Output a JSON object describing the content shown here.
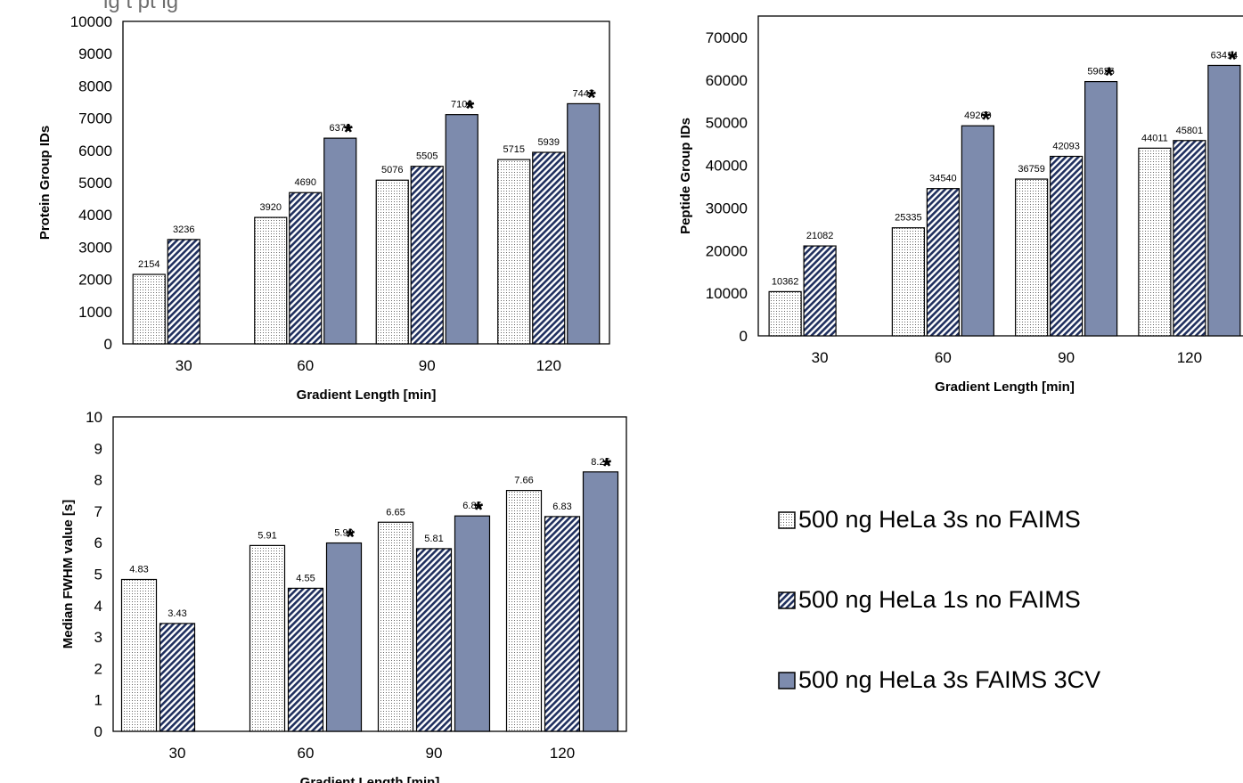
{
  "header_partial_text": "ig      t pt      ig",
  "colors": {
    "fill_3s_no_faims": "#ffffff",
    "dot_3s_no_faims": "#666666",
    "hatch_1s": "#1f2f5e",
    "fill_faims": "#7d8bad",
    "bar_stroke": "#000000",
    "plot_border": "#000000"
  },
  "legend": {
    "items": [
      {
        "label": "500 ng HeLa 3s no FAIMS",
        "pattern": "dots"
      },
      {
        "label": "500 ng HeLa 1s no FAIMS",
        "pattern": "hatch"
      },
      {
        "label": "500 ng HeLa 3s FAIMS 3CV",
        "pattern": "solid"
      }
    ]
  },
  "chart_data": [
    {
      "id": "protein",
      "type": "bar",
      "categories": [
        "30",
        "60",
        "90",
        "120"
      ],
      "series": [
        {
          "name": "500 ng HeLa 3s no FAIMS",
          "pattern": "dots",
          "values": [
            2154,
            3920,
            5076,
            5715
          ]
        },
        {
          "name": "500 ng HeLa 1s no FAIMS",
          "pattern": "hatch",
          "values": [
            3236,
            4690,
            5505,
            5939
          ]
        },
        {
          "name": "500 ng HeLa 3s FAIMS 3CV",
          "pattern": "solid",
          "values": [
            null,
            6378,
            7109,
            7447
          ]
        }
      ],
      "data_labels": [
        [
          "2154",
          "3920",
          "5076",
          "5715"
        ],
        [
          "3236",
          "4690",
          "5505",
          "5939"
        ],
        [
          null,
          "6378",
          "7109",
          "7447"
        ]
      ],
      "significance_marks": [
        [
          false,
          false,
          false,
          false
        ],
        [
          false,
          false,
          false,
          false
        ],
        [
          false,
          true,
          true,
          true
        ]
      ],
      "significance_symbol": "*",
      "ylim": [
        0,
        10000
      ],
      "yticks": [
        "0",
        "1000",
        "2000",
        "3000",
        "4000",
        "5000",
        "6000",
        "7000",
        "8000",
        "9000",
        "10000"
      ],
      "xlabel": "Gradient Length [min]",
      "ylabel": "Protein Group IDs",
      "grid": false
    },
    {
      "id": "peptide",
      "type": "bar",
      "categories": [
        "30",
        "60",
        "90",
        "120"
      ],
      "series": [
        {
          "name": "500 ng HeLa 3s no FAIMS",
          "pattern": "dots",
          "values": [
            10362,
            25335,
            36759,
            44011
          ]
        },
        {
          "name": "500 ng HeLa 1s no FAIMS",
          "pattern": "hatch",
          "values": [
            21082,
            34540,
            42093,
            45801
          ]
        },
        {
          "name": "500 ng HeLa 3s FAIMS 3CV",
          "pattern": "solid",
          "values": [
            null,
            49260,
            59626,
            63414
          ]
        }
      ],
      "data_labels": [
        [
          "10362",
          "25335",
          "36759",
          "44011"
        ],
        [
          "21082",
          "34540",
          "42093",
          "45801"
        ],
        [
          null,
          "49260",
          "59626",
          "63414"
        ]
      ],
      "significance_marks": [
        [
          false,
          false,
          false,
          false
        ],
        [
          false,
          false,
          false,
          false
        ],
        [
          false,
          true,
          true,
          true
        ]
      ],
      "significance_symbol": "*",
      "ylim": [
        0,
        75000
      ],
      "yticks": [
        "0",
        "10000",
        "20000",
        "30000",
        "40000",
        "50000",
        "60000",
        "70000"
      ],
      "xlabel": "Gradient Length [min]",
      "ylabel": "Peptide Group IDs",
      "grid": false
    },
    {
      "id": "fwhm",
      "type": "bar",
      "categories": [
        "30",
        "60",
        "90",
        "120"
      ],
      "series": [
        {
          "name": "500 ng HeLa 3s no FAIMS",
          "pattern": "dots",
          "values": [
            4.83,
            5.91,
            6.65,
            7.66
          ]
        },
        {
          "name": "500 ng HeLa 1s no FAIMS",
          "pattern": "hatch",
          "values": [
            3.43,
            4.55,
            5.81,
            6.83
          ]
        },
        {
          "name": "500 ng HeLa 3s FAIMS 3CV",
          "pattern": "solid",
          "values": [
            null,
            5.99,
            6.85,
            8.25
          ]
        }
      ],
      "data_labels": [
        [
          "4.83",
          "5.91",
          "6.65",
          "7.66"
        ],
        [
          "3.43",
          "4.55",
          "5.81",
          "6.83"
        ],
        [
          null,
          "5.99",
          "6.85",
          "8.25"
        ]
      ],
      "significance_marks": [
        [
          false,
          false,
          false,
          false
        ],
        [
          false,
          false,
          false,
          false
        ],
        [
          false,
          true,
          true,
          true
        ]
      ],
      "significance_symbol": "*",
      "ylim": [
        0,
        10
      ],
      "yticks": [
        "0",
        "1",
        "2",
        "3",
        "4",
        "5",
        "6",
        "7",
        "8",
        "9",
        "10"
      ],
      "xlabel": "Gradient Length [min]",
      "ylabel": "Median FWHM value [s]",
      "grid": false
    }
  ]
}
